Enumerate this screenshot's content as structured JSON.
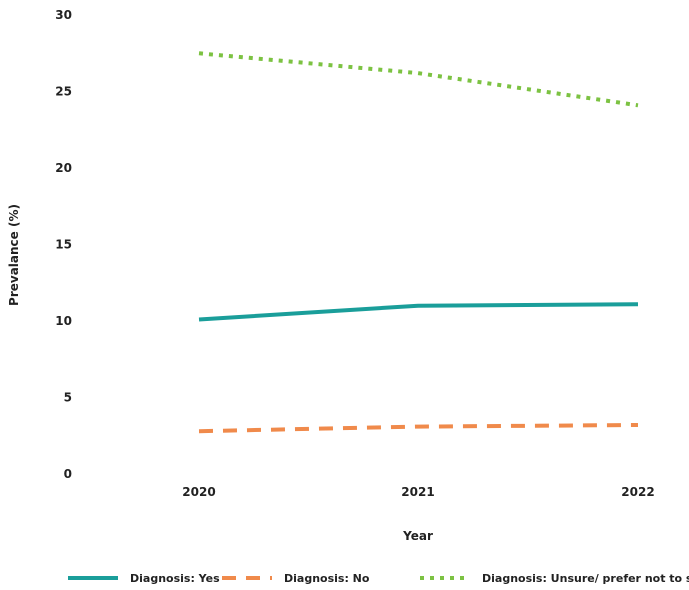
{
  "chart_data": {
    "type": "line",
    "title": "",
    "xlabel": "Year",
    "ylabel": "Prevalance (%)",
    "categories": [
      "2020",
      "2021",
      "2022"
    ],
    "ylim": [
      0,
      30
    ],
    "yticks": [
      0,
      5,
      10,
      15,
      20,
      25,
      30
    ],
    "grid": false,
    "legend_position": "bottom",
    "series": [
      {
        "name": "Diagnosis: Yes",
        "values": [
          10.1,
          11.0,
          11.1
        ],
        "color": "#1a9e9a",
        "style": "solid"
      },
      {
        "name": "Diagnosis: No",
        "values": [
          2.8,
          3.1,
          3.2
        ],
        "color": "#f08a4b",
        "style": "dashed"
      },
      {
        "name": "Diagnosis: Unsure/ prefer not to say",
        "values": [
          27.5,
          26.2,
          24.1
        ],
        "color": "#7cc242",
        "style": "dotted"
      }
    ]
  }
}
